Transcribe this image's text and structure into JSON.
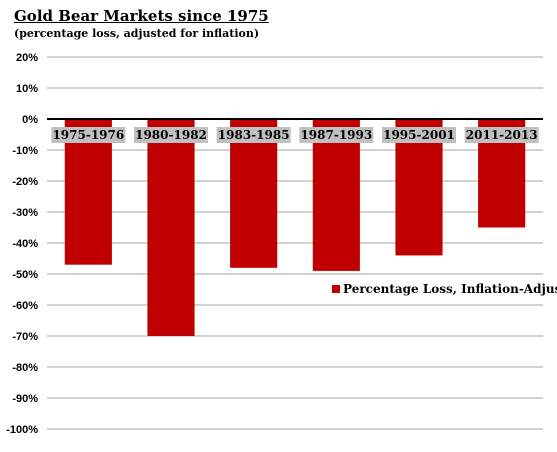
{
  "chart_data": {
    "type": "bar",
    "title": "Gold Bear Markets since 1975",
    "subtitle": "(percentage loss, adjusted for inflation)",
    "categories": [
      "1975-1976",
      "1980-1982",
      "1983-1985",
      "1987-1993",
      "1995-2001",
      "2011-2013"
    ],
    "series": [
      {
        "name": "Percentage Loss, Inflation-Adjusted",
        "values": [
          -47,
          -70,
          -48,
          -49,
          -44,
          -35
        ],
        "color": "#c00000"
      }
    ],
    "ylim": [
      -100,
      20
    ],
    "y_ticks": [
      20,
      10,
      0,
      -10,
      -20,
      -30,
      -40,
      -50,
      -60,
      -70,
      -80,
      -90,
      -100
    ],
    "y_tick_labels": [
      "20%",
      "10%",
      "0%",
      "-10%",
      "-20%",
      "-30%",
      "-40%",
      "-50%",
      "-60%",
      "-70%",
      "-80%",
      "-90%",
      "-100%"
    ],
    "grid": true,
    "legend_position": "right",
    "category_label_background": "#c0c0c0"
  }
}
